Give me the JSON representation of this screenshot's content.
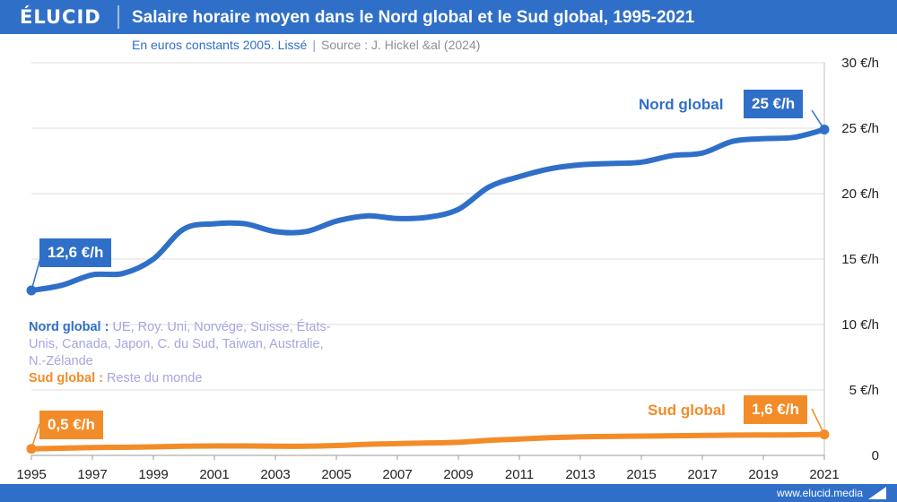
{
  "header": {
    "brand": "ÉLUCID",
    "title": "Salaire horaire moyen dans le Nord global et le Sud global, 1995-2021",
    "subtitle": "En euros constants 2005. Lissé",
    "source": "Source : J. Hickel &al (2024)"
  },
  "legend": {
    "north_key": "Nord global :",
    "north_desc": "UE, Roy. Uni, Norvége, Suisse, États-Unis, Canada, Japon, C. du Sud, Taiwan, Australie, N.-Zélande",
    "south_key": "Sud global :",
    "south_desc": "Reste du monde"
  },
  "annotations": {
    "north_start": "12,6 €/h",
    "north_end": "25 €/h",
    "south_start": "0,5 €/h",
    "south_end": "1,6 €/h",
    "north_name": "Nord global",
    "south_name": "Sud global"
  },
  "footer": {
    "url": "www.elucid.media"
  },
  "colors": {
    "north": "#2f6fc8",
    "south": "#f28c28",
    "grid": "#dcdcdc",
    "axis_text": "#222222"
  },
  "chart_data": {
    "type": "line",
    "title": "Salaire horaire moyen dans le Nord global et le Sud global, 1995-2021",
    "subtitle": "En euros constants 2005. Lissé",
    "x": [
      1995,
      1996,
      1997,
      1998,
      1999,
      2000,
      2001,
      2002,
      2003,
      2004,
      2005,
      2006,
      2007,
      2008,
      2009,
      2010,
      2011,
      2012,
      2013,
      2014,
      2015,
      2016,
      2017,
      2018,
      2019,
      2020,
      2021
    ],
    "series": [
      {
        "name": "Nord global",
        "values": [
          12.6,
          13.0,
          13.8,
          13.9,
          15.0,
          17.3,
          17.7,
          17.7,
          17.1,
          17.1,
          17.9,
          18.3,
          18.1,
          18.2,
          18.8,
          20.5,
          21.3,
          21.9,
          22.2,
          22.3,
          22.4,
          22.9,
          23.1,
          24.0,
          24.2,
          24.3,
          24.9
        ]
      },
      {
        "name": "Sud global",
        "values": [
          0.5,
          0.55,
          0.6,
          0.62,
          0.65,
          0.7,
          0.72,
          0.72,
          0.7,
          0.7,
          0.75,
          0.85,
          0.9,
          0.95,
          1.0,
          1.15,
          1.25,
          1.35,
          1.42,
          1.45,
          1.47,
          1.5,
          1.52,
          1.55,
          1.56,
          1.57,
          1.6
        ]
      }
    ],
    "x_ticks": [
      1995,
      1997,
      1999,
      2001,
      2003,
      2005,
      2007,
      2009,
      2011,
      2013,
      2015,
      2017,
      2019,
      2021
    ],
    "y_ticks": [
      0,
      5,
      10,
      15,
      20,
      25,
      30
    ],
    "y_tick_labels": [
      "0",
      "5 €/h",
      "10 €/h",
      "15 €/h",
      "20 €/h",
      "25 €/h",
      "30 €/h"
    ],
    "xlim": [
      1995,
      2021
    ],
    "ylim": [
      0,
      30
    ],
    "grid": true,
    "y_axis_side": "right"
  }
}
